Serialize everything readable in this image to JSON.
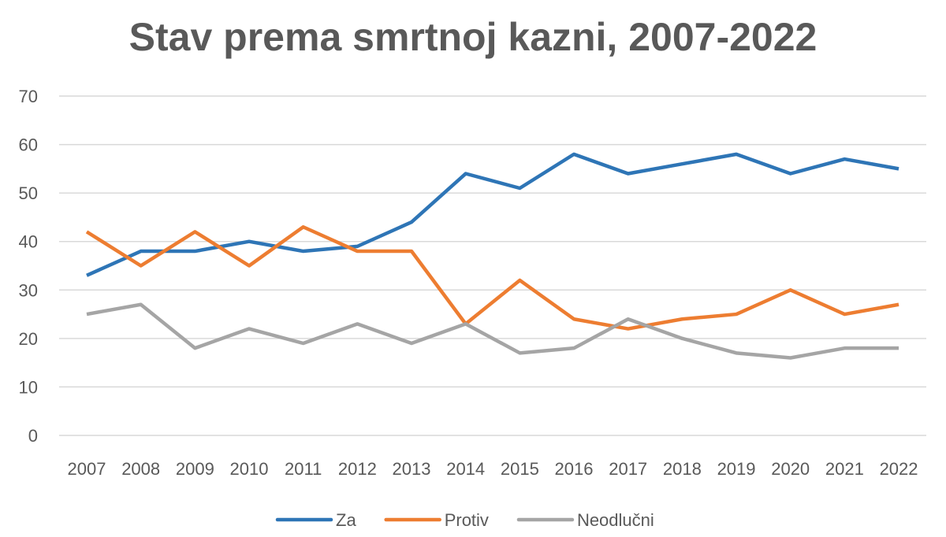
{
  "chart_data": {
    "type": "line",
    "title": "Stav prema smrtnoj kazni, 2007-2022",
    "xlabel": "",
    "ylabel": "",
    "ylim": [
      0,
      70
    ],
    "yticks": [
      0,
      10,
      20,
      30,
      40,
      50,
      60,
      70
    ],
    "grid": true,
    "legend_position": "bottom",
    "categories": [
      "2007",
      "2008",
      "2009",
      "2010",
      "2011",
      "2012",
      "2013",
      "2014",
      "2015",
      "2016",
      "2017",
      "2018",
      "2019",
      "2020",
      "2021",
      "2022"
    ],
    "series": [
      {
        "name": "Za",
        "color": "#2e75b6",
        "values": [
          33,
          38,
          38,
          40,
          38,
          39,
          44,
          54,
          51,
          58,
          54,
          56,
          58,
          54,
          57,
          55
        ]
      },
      {
        "name": "Protiv",
        "color": "#ed7d31",
        "values": [
          42,
          35,
          42,
          35,
          43,
          38,
          38,
          23,
          32,
          24,
          22,
          24,
          25,
          30,
          25,
          27
        ]
      },
      {
        "name": "Neodlučni",
        "color": "#a5a5a5",
        "values": [
          25,
          27,
          18,
          22,
          19,
          23,
          19,
          23,
          17,
          18,
          24,
          20,
          17,
          16,
          18,
          18
        ]
      }
    ]
  }
}
